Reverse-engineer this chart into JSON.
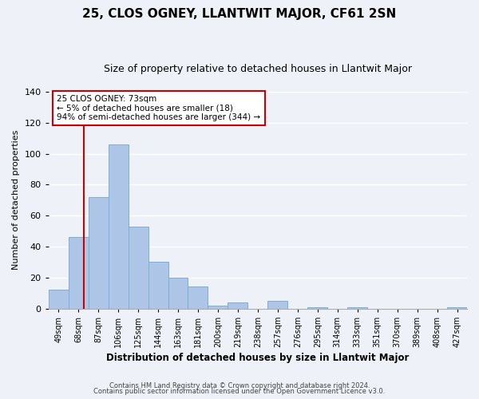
{
  "title": "25, CLOS OGNEY, LLANTWIT MAJOR, CF61 2SN",
  "subtitle": "Size of property relative to detached houses in Llantwit Major",
  "xlabel": "Distribution of detached houses by size in Llantwit Major",
  "ylabel": "Number of detached properties",
  "bar_labels": [
    "49sqm",
    "68sqm",
    "87sqm",
    "106sqm",
    "125sqm",
    "144sqm",
    "163sqm",
    "181sqm",
    "200sqm",
    "219sqm",
    "238sqm",
    "257sqm",
    "276sqm",
    "295sqm",
    "314sqm",
    "333sqm",
    "351sqm",
    "370sqm",
    "389sqm",
    "408sqm",
    "427sqm"
  ],
  "bar_values": [
    12,
    46,
    72,
    106,
    53,
    30,
    20,
    14,
    2,
    4,
    0,
    5,
    0,
    1,
    0,
    1,
    0,
    0,
    0,
    0,
    1
  ],
  "bar_color": "#adc6e8",
  "bar_edge_color": "#7bafd4",
  "vline_color": "#cc0000",
  "ylim": [
    0,
    140
  ],
  "yticks": [
    0,
    20,
    40,
    60,
    80,
    100,
    120,
    140
  ],
  "annotation_title": "25 CLOS OGNEY: 73sqm",
  "annotation_line1": "← 5% of detached houses are smaller (18)",
  "annotation_line2": "94% of semi-detached houses are larger (344) →",
  "annotation_box_color": "#ffffff",
  "annotation_border_color": "#cc0000",
  "footer_line1": "Contains HM Land Registry data © Crown copyright and database right 2024.",
  "footer_line2": "Contains public sector information licensed under the Open Government Licence v3.0.",
  "background_color": "#eef2f8",
  "grid_color": "#ffffff",
  "title_fontsize": 11,
  "subtitle_fontsize": 9
}
